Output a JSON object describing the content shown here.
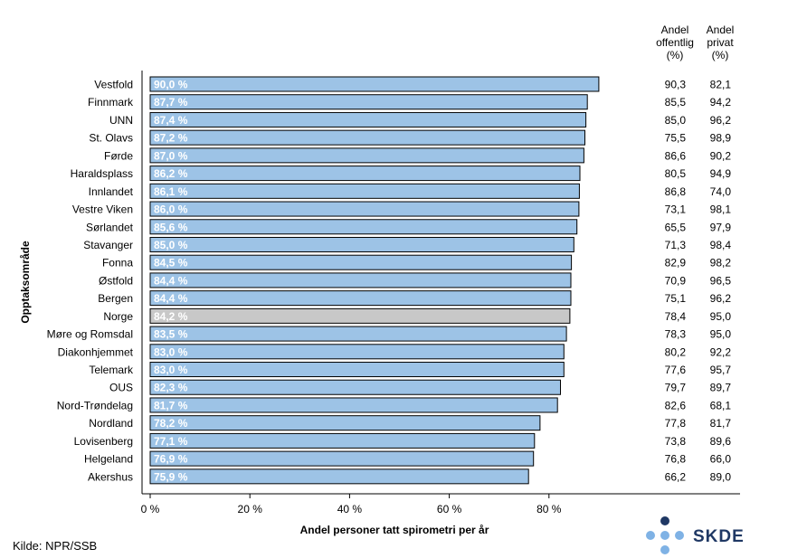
{
  "chart_data": {
    "type": "bar",
    "orientation": "horizontal",
    "categories": [
      "Vestfold",
      "Finnmark",
      "UNN",
      "St. Olavs",
      "Førde",
      "Haraldsplass",
      "Innlandet",
      "Vestre Viken",
      "Sørlandet",
      "Stavanger",
      "Fonna",
      "Østfold",
      "Bergen",
      "Norge",
      "Møre og Romsdal",
      "Diakonhjemmet",
      "Telemark",
      "OUS",
      "Nord-Trøndelag",
      "Nordland",
      "Lovisenberg",
      "Helgeland",
      "Akershus"
    ],
    "values": [
      90.0,
      87.7,
      87.4,
      87.2,
      87.0,
      86.2,
      86.1,
      86.0,
      85.6,
      85.0,
      84.5,
      84.4,
      84.4,
      84.2,
      83.5,
      83.0,
      83.0,
      82.3,
      81.7,
      78.2,
      77.1,
      76.9,
      75.9
    ],
    "value_labels": [
      "90,0 %",
      "87,7 %",
      "87,4 %",
      "87,2 %",
      "87,0 %",
      "86,2 %",
      "86,1 %",
      "86,0 %",
      "85,6 %",
      "85,0 %",
      "84,5 %",
      "84,4 %",
      "84,4 %",
      "84,2 %",
      "83,5 %",
      "83,0 %",
      "83,0 %",
      "82,3 %",
      "81,7 %",
      "78,2 %",
      "77,1 %",
      "76,9 %",
      "75,9 %"
    ],
    "highlight_category": "Norge",
    "xlabel": "Andel personer tatt spirometri per år",
    "ylabel": "Opptaksområde",
    "xlim": [
      0,
      100
    ],
    "xticks": [
      0,
      20,
      40,
      60,
      80
    ],
    "xtick_labels": [
      "0 %",
      "20 %",
      "40 %",
      "60 %",
      "80 %"
    ],
    "grid": false,
    "colors": {
      "bar": "#9dc3e6",
      "highlight": "#c8c8c8",
      "bar_edge": "#000000"
    },
    "extra_columns": [
      {
        "header": [
          "Andel",
          "offentlig",
          "(%)"
        ],
        "values": [
          "90,3",
          "85,5",
          "85,0",
          "75,5",
          "86,6",
          "80,5",
          "86,8",
          "73,1",
          "65,5",
          "71,3",
          "82,9",
          "70,9",
          "75,1",
          "78,4",
          "78,3",
          "80,2",
          "77,6",
          "79,7",
          "82,6",
          "77,8",
          "73,8",
          "76,8",
          "66,2"
        ]
      },
      {
        "header": [
          "Andel",
          "privat",
          "(%)"
        ],
        "values": [
          "82,1",
          "94,2",
          "96,2",
          "98,9",
          "90,2",
          "94,9",
          "74,0",
          "98,1",
          "97,9",
          "98,4",
          "98,2",
          "96,5",
          "96,2",
          "95,0",
          "95,0",
          "92,2",
          "95,7",
          "89,7",
          "68,1",
          "81,7",
          "89,6",
          "66,0",
          "89,0"
        ]
      }
    ]
  },
  "source": "Kilde: NPR/SSB",
  "logo": {
    "text": "SKDE",
    "colors": {
      "dark": "#1f3864",
      "light": "#7fb2e5"
    }
  }
}
